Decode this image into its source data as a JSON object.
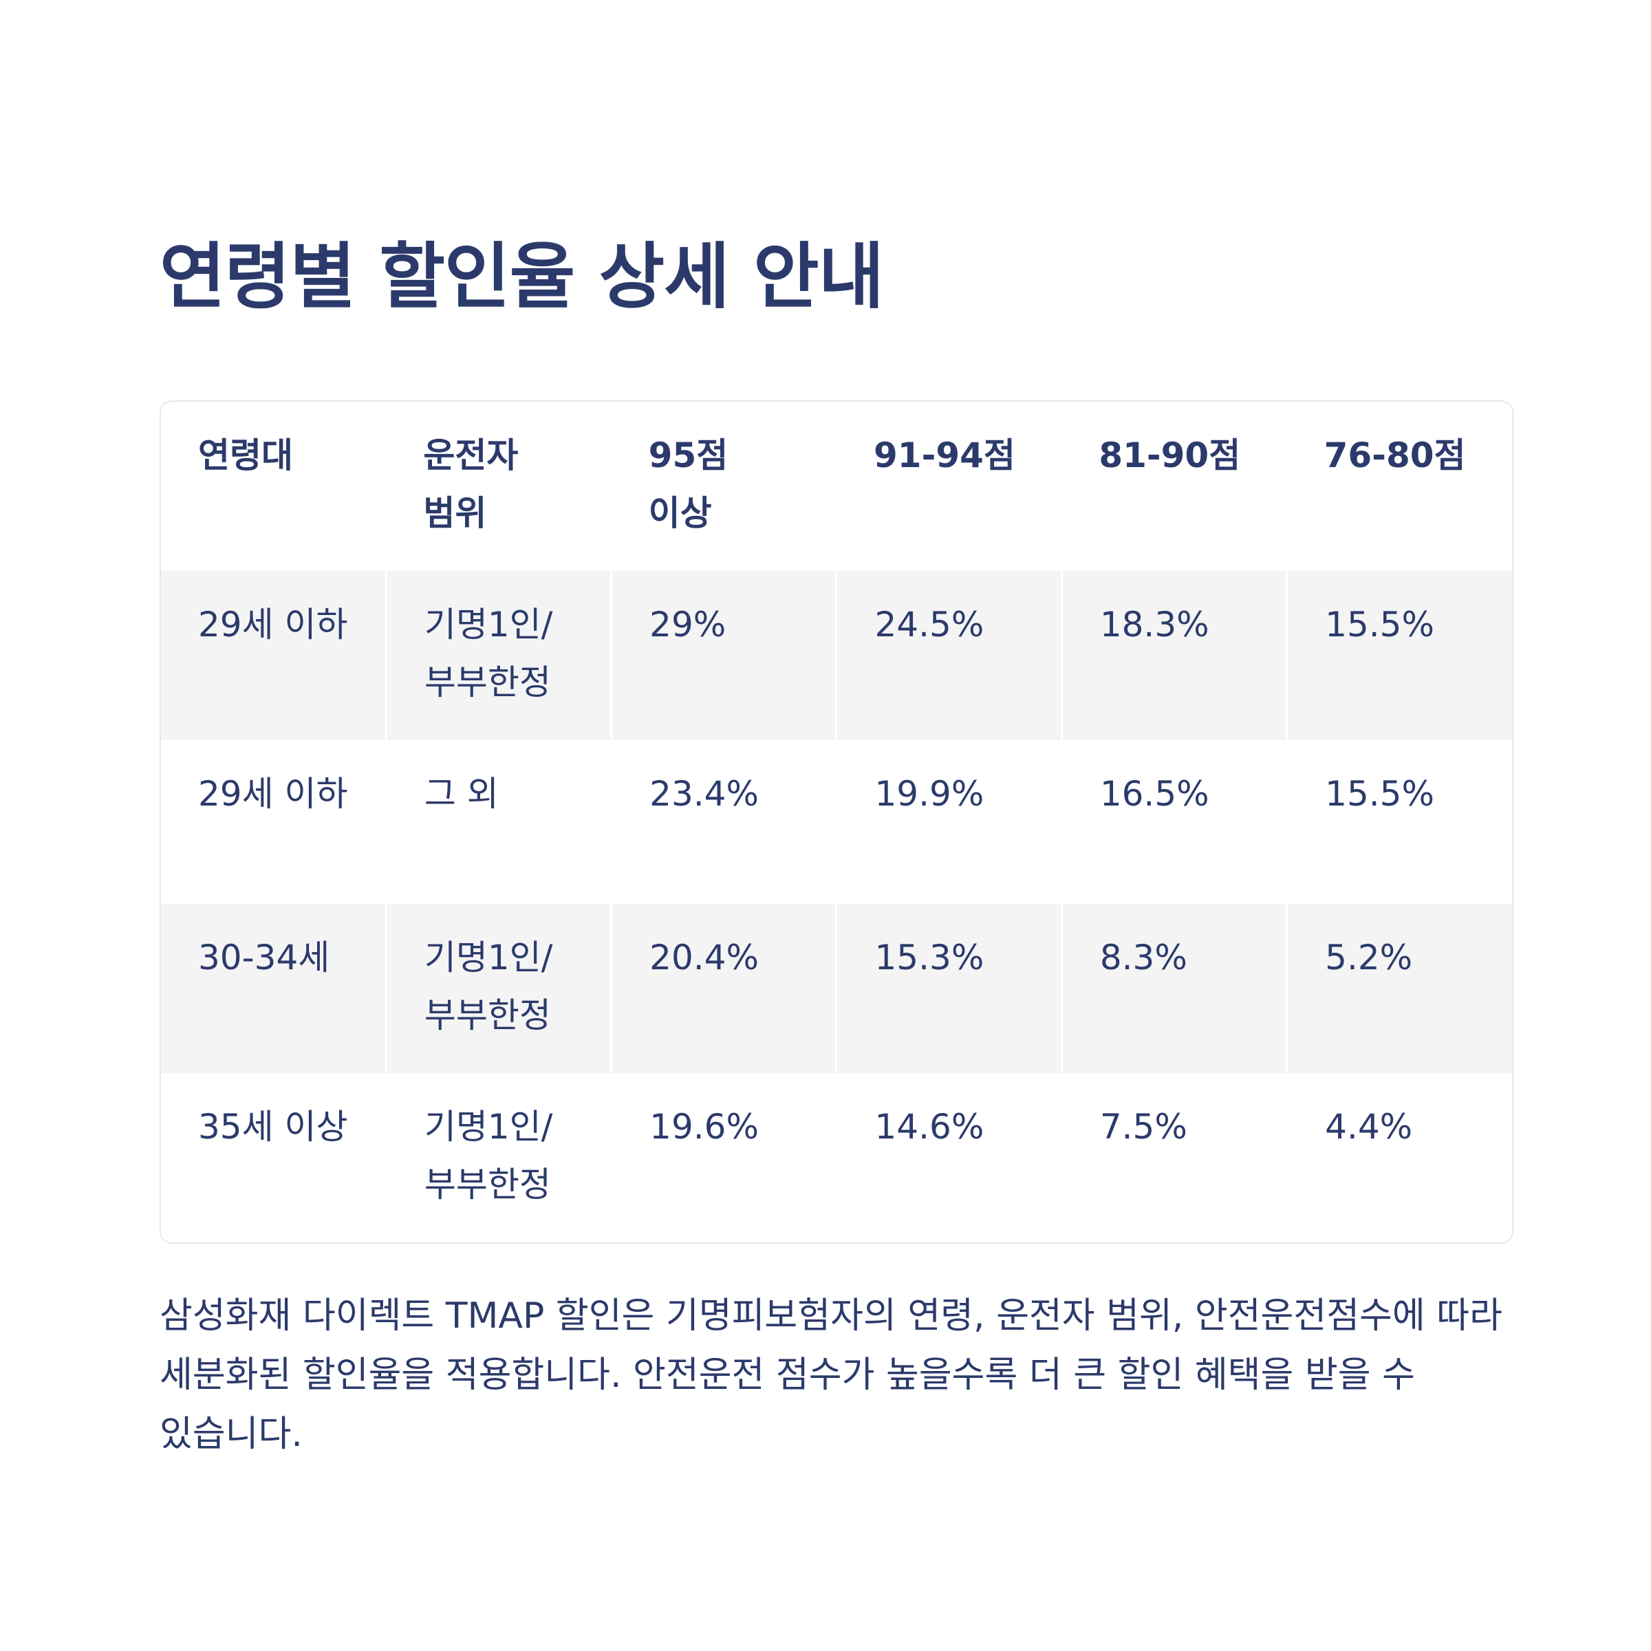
{
  "title": "연령별 할인율 상세 안내",
  "table": {
    "headers": [
      "연령대",
      "운전자 범위",
      "95점 이상",
      "91-94점",
      "81-90점",
      "76-80점"
    ],
    "rows": [
      [
        "29세 이하",
        "기명1인/부부한정",
        "29%",
        "24.5%",
        "18.3%",
        "15.5%"
      ],
      [
        "29세 이하",
        "그 외",
        "23.4%",
        "19.9%",
        "16.5%",
        "15.5%"
      ],
      [
        "30-34세",
        "기명1인/부부한정",
        "20.4%",
        "15.3%",
        "8.3%",
        "5.2%"
      ],
      [
        "35세 이상",
        "기명1인/부부한정",
        "19.6%",
        "14.6%",
        "7.5%",
        "4.4%"
      ]
    ]
  },
  "description": "삼성화재 다이렉트 TMAP 할인은 기명피보험자의 연령, 운전자 범위, 안전운전점수에 따라 세분화된 할인율을 적용합니다. 안전운전 점수가 높을수록 더 큰 할인 혜택을 받을 수 있습니다."
}
